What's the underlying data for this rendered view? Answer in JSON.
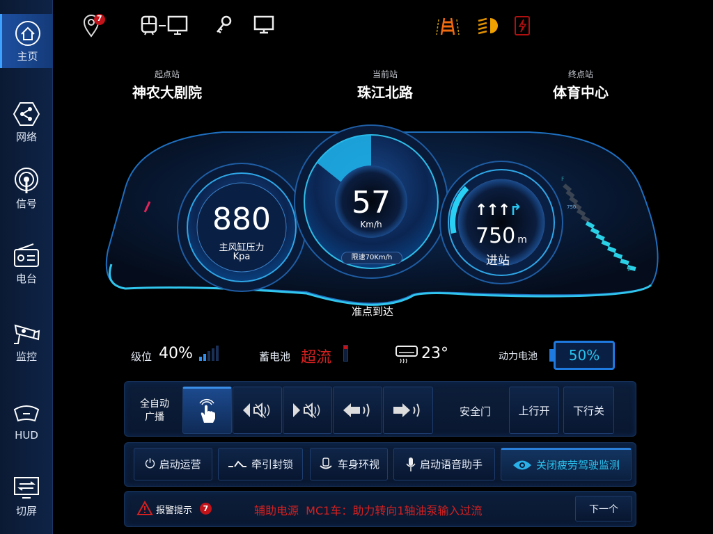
{
  "sidebar": {
    "items": [
      {
        "label": "主页",
        "icon": "home-icon",
        "active": true
      },
      {
        "label": "网络",
        "icon": "network-icon"
      },
      {
        "label": "信号",
        "icon": "signal-icon"
      },
      {
        "label": "电台",
        "icon": "radio-icon"
      },
      {
        "label": "监控",
        "icon": "camera-icon"
      },
      {
        "label": "HUD",
        "icon": "hud-icon"
      },
      {
        "label": "切屏",
        "icon": "switch-screen-icon"
      }
    ]
  },
  "topbar": {
    "location_badge": "7",
    "icons": [
      "location-icon",
      "train-monitor-icon",
      "key-icon",
      "monitor-icon",
      "track-warning-icon",
      "headlight-icon",
      "power-fault-icon"
    ],
    "colors": {
      "track": "#f06a10",
      "headlight": "#f0a000",
      "fault": "#c01818"
    }
  },
  "stations": {
    "start_label": "起点站",
    "start": "神农大剧院",
    "current_label": "当前站",
    "current": "珠江北路",
    "end_label": "终点站",
    "end": "体育中心"
  },
  "gauges": {
    "pressure": {
      "value": "880",
      "label": "主风缸压力",
      "unit": "Kpa"
    },
    "speed": {
      "value": "57",
      "unit": "Km/h",
      "limit": "限速70Km/h",
      "limit_value": 70
    },
    "distance": {
      "value": "750",
      "unit": "m",
      "label": "进站",
      "arc_fraction": 0.2
    },
    "bar": {
      "top": "F",
      "mark": "750",
      "bottom": "E",
      "level": 0.6
    },
    "status": "准点到达"
  },
  "status": {
    "level_label": "级位",
    "level": "40%",
    "level_fraction": 0.4,
    "battery_label": "蓄电池",
    "battery_state": "超流",
    "ac_temp": "23°",
    "power_label": "动力电池",
    "power": "50%",
    "power_fraction": 0.5,
    "colors": {
      "alert": "#d42020",
      "accent": "#29c4f0"
    }
  },
  "broadcast": {
    "label1": "全自动",
    "label2": "广播",
    "buttons": [
      "touch-icon",
      "left-mute-icon",
      "right-mute-icon",
      "left-sound-icon",
      "right-sound-icon"
    ],
    "door_label": "安全门",
    "up": "上行开",
    "down": "下行关"
  },
  "actions": [
    {
      "label": "启动运营",
      "icon": "power-icon"
    },
    {
      "label": "牵引封锁",
      "icon": "traction-lock-icon"
    },
    {
      "label": "车身环视",
      "icon": "surround-view-icon"
    },
    {
      "label": "启动语音助手",
      "icon": "microphone-icon"
    },
    {
      "label": "关闭疲劳驾驶监测",
      "icon": "eye-icon",
      "active": true
    }
  ],
  "alarm": {
    "label": "报警提示",
    "count": "7",
    "message": "辅助电源  MC1车：助力转向1轴油泵输入过流",
    "next": "下一个"
  }
}
